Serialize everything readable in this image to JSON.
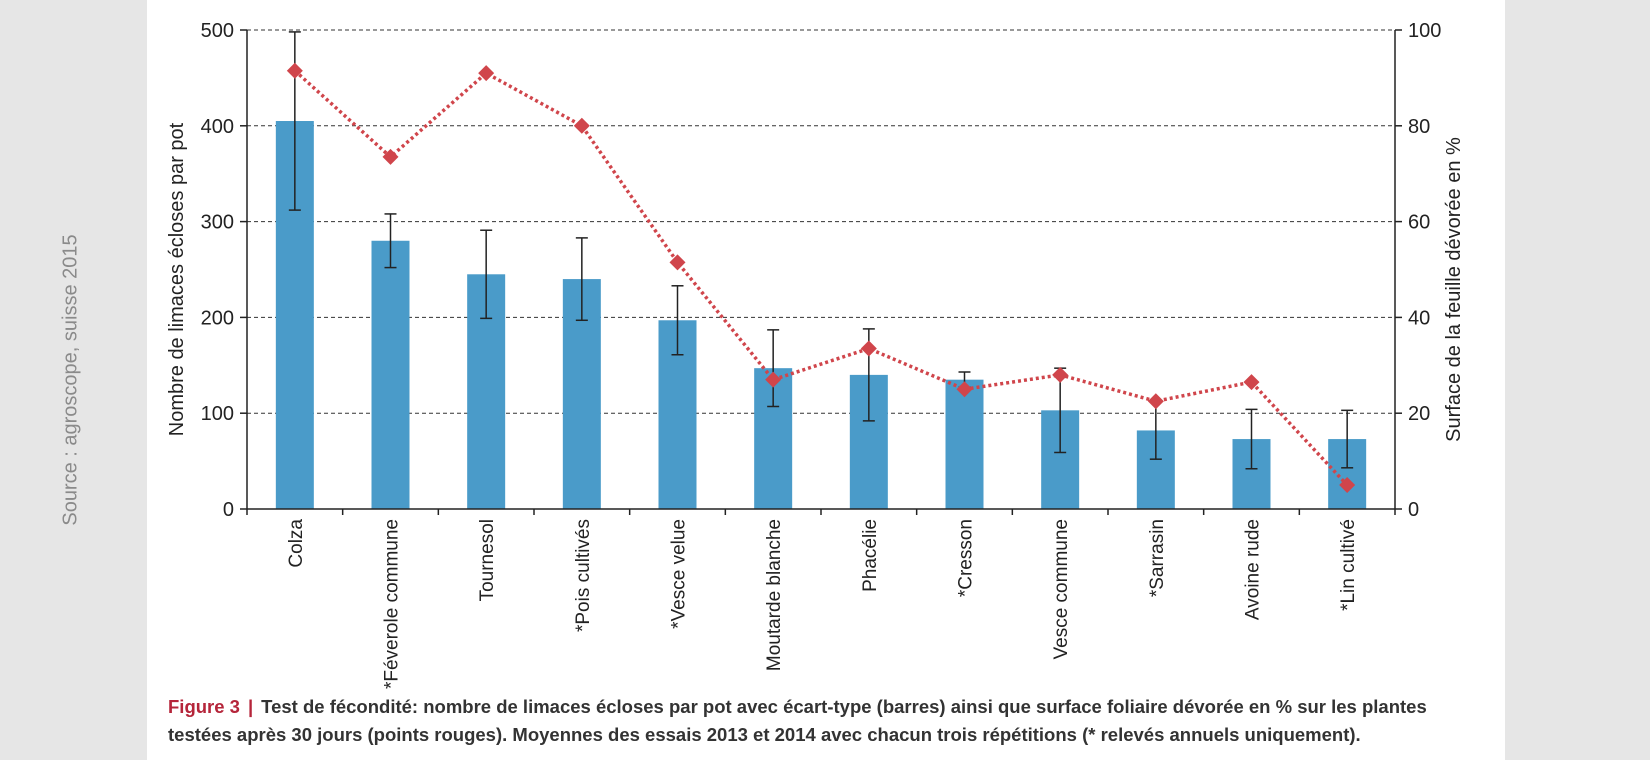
{
  "source_note": "Source : agroscope, suisse 2015",
  "caption": {
    "figure_label": "Figure 3",
    "separator": "|",
    "text": "Test de fécondité: nombre de limaces écloses par pot avec écart-type (barres) ainsi que surface foliaire dévorée en % sur les plantes testées après 30 jours (points rouges). Moyennes des essais 2013 et 2014 avec chacun trois répétitions (* relevés annuels uniquement)."
  },
  "chart_data": {
    "type": "bar",
    "title": "",
    "categories": [
      "Colza",
      "*Féverole commune",
      "Tournesol",
      "*Pois cultivés",
      "*Vesce velue",
      "Moutarde blanche",
      "Phacélie",
      "*Cresson",
      "Vesce commune",
      "*Sarrasin",
      "Avoine rude",
      "*Lin cultivé"
    ],
    "series": [
      {
        "name": "Nombre de limaces écloses par pot",
        "axis": "left",
        "kind": "bar",
        "color": "#4a9bc9",
        "values": [
          405,
          280,
          245,
          240,
          197,
          147,
          140,
          135,
          103,
          82,
          73,
          73
        ],
        "error": [
          93,
          28,
          46,
          43,
          36,
          40,
          48,
          8,
          44,
          30,
          31,
          30
        ]
      },
      {
        "name": "Surface de la feuille dévorée en %",
        "axis": "right",
        "kind": "line",
        "color": "#d0454b",
        "values": [
          91.5,
          73.5,
          91,
          80,
          51.5,
          27,
          33.5,
          25,
          28,
          22.5,
          26.5,
          5
        ]
      }
    ],
    "ylabel": "Nombre de limaces écloses par pot",
    "y2label": "Surface de la feuille dévorée en %",
    "ylim": [
      0,
      500
    ],
    "y2lim": [
      0,
      100
    ],
    "yticks": [
      0,
      100,
      200,
      300,
      400,
      500
    ],
    "y2ticks": [
      0,
      20,
      40,
      60,
      80,
      100
    ],
    "grid": true
  }
}
